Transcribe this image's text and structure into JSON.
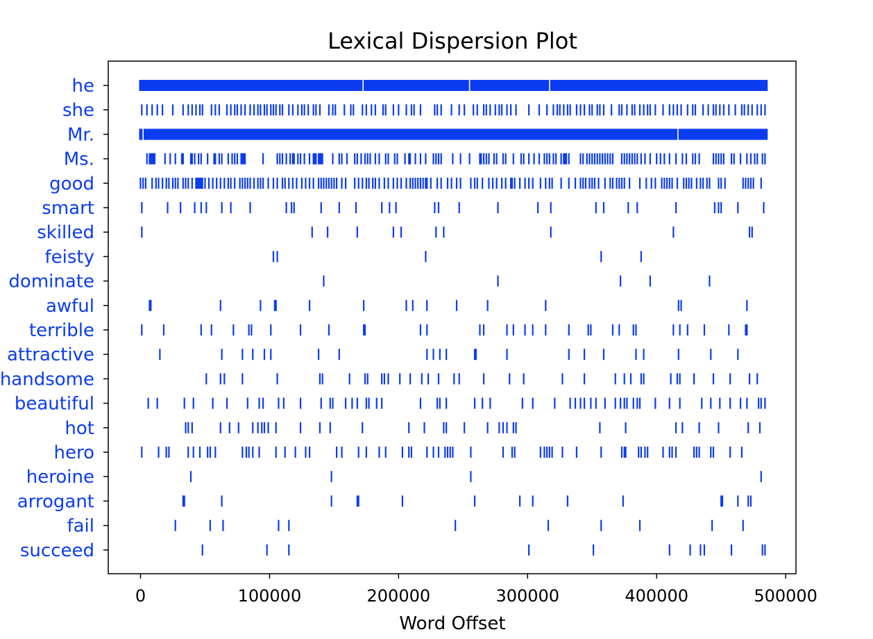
{
  "chart_data": {
    "type": "scatter",
    "title": "Lexical Dispersion Plot",
    "xlabel": "Word Offset",
    "ylabel": "",
    "xlim": [
      -25000,
      508000
    ],
    "xticks": [
      0,
      100000,
      200000,
      300000,
      400000,
      500000
    ],
    "xtick_labels": [
      "0",
      "100000",
      "200000",
      "300000",
      "400000",
      "500000"
    ],
    "grid": false,
    "marker": "|",
    "color": "#0b3cf0",
    "words": [
      "he",
      "she",
      "Mr.",
      "Ms.",
      "good",
      "smart",
      "skilled",
      "feisty",
      "dominate",
      "awful",
      "terrible",
      "attractive",
      "handsome",
      "beautiful",
      "hot",
      "hero",
      "heroine",
      "arrogant",
      "fail",
      "succeed"
    ],
    "series": [
      {
        "word": "he",
        "dense": true,
        "range": [
          0,
          485000
        ],
        "gaps": [
          172500,
          255000,
          317000
        ]
      },
      {
        "word": "she",
        "offsets": [
          1000,
          5000,
          9000,
          13000,
          17000,
          25000,
          33000,
          37000,
          40000,
          43000,
          46000,
          48000,
          55000,
          58000,
          61000,
          67000,
          70000,
          73000,
          75000,
          78000,
          81000,
          85000,
          88000,
          91000,
          93000,
          96000,
          98000,
          101000,
          103000,
          105000,
          108000,
          110000,
          115000,
          118000,
          122000,
          125000,
          127000,
          130000,
          134000,
          136000,
          139000,
          146000,
          149000,
          151000,
          158000,
          163000,
          165000,
          172000,
          175000,
          179000,
          182000,
          188000,
          190000,
          196000,
          200000,
          206000,
          210000,
          212000,
          217000,
          228000,
          230000,
          233000,
          241000,
          247000,
          251000,
          258000,
          261000,
          266000,
          268000,
          271000,
          275000,
          278000,
          280000,
          284000,
          287000,
          291000,
          301000,
          309000,
          315000,
          320000,
          323000,
          325000,
          328000,
          331000,
          333000,
          338000,
          341000,
          344000,
          348000,
          350000,
          354000,
          356000,
          359000,
          365000,
          371000,
          373000,
          377000,
          381000,
          383000,
          387000,
          390000,
          393000,
          395000,
          399000,
          405000,
          410000,
          413000,
          416000,
          419000,
          424000,
          428000,
          430000,
          436000,
          440000,
          444000,
          446000,
          449000,
          452000,
          456000,
          461000,
          466000,
          468000,
          471000,
          474000,
          478000,
          481000,
          484000
        ]
      },
      {
        "word": "Mr.",
        "dense": true,
        "range": [
          0,
          485000
        ],
        "gaps": [
          2000,
          416500
        ]
      },
      {
        "word": "Ms.",
        "offsets": [
          5000,
          7000,
          8000,
          9000,
          10000,
          11000,
          19000,
          23000,
          27000,
          32000,
          33000,
          39000,
          40000,
          42000,
          45000,
          47000,
          52000,
          57000,
          58000,
          61000,
          63000,
          68000,
          71000,
          73000,
          75000,
          78000,
          79000,
          80000,
          81000,
          95000,
          106000,
          108000,
          110000,
          113000,
          116000,
          118000,
          119000,
          122000,
          124000,
          127000,
          131000,
          134000,
          135000,
          136000,
          138000,
          139000,
          140000,
          141000,
          149000,
          154000,
          156000,
          160000,
          166000,
          168000,
          171000,
          174000,
          176000,
          178000,
          182000,
          185000,
          190000,
          192000,
          197000,
          199000,
          205000,
          208000,
          209000,
          213000,
          217000,
          221000,
          227000,
          229000,
          231000,
          233000,
          242000,
          248000,
          255000,
          263000,
          264000,
          266000,
          268000,
          270000,
          274000,
          276000,
          281000,
          283000,
          289000,
          295000,
          297000,
          301000,
          305000,
          309000,
          313000,
          315000,
          317000,
          320000,
          322000,
          326000,
          328000,
          329000,
          330000,
          332000,
          341000,
          343000,
          346000,
          348000,
          350000,
          352000,
          354000,
          356000,
          358000,
          360000,
          362000,
          364000,
          366000,
          373000,
          375000,
          377000,
          379000,
          381000,
          383000,
          385000,
          388000,
          391000,
          395000,
          400000,
          403000,
          406000,
          410000,
          415000,
          420000,
          423000,
          428000,
          430000,
          433000,
          444000,
          446000,
          448000,
          450000,
          452000,
          458000,
          460000,
          465000,
          470000,
          473000,
          476000,
          478000,
          482000,
          484000
        ]
      },
      {
        "word": "good",
        "offsets": [
          0,
          2000,
          4000,
          9000,
          12000,
          14000,
          17000,
          20000,
          22000,
          25000,
          27000,
          29000,
          33000,
          35000,
          37000,
          40000,
          43000,
          44000,
          45000,
          46000,
          47000,
          48000,
          50000,
          53000,
          56000,
          59000,
          62000,
          65000,
          68000,
          70000,
          73000,
          77000,
          79000,
          81000,
          83000,
          85000,
          88000,
          91000,
          93000,
          95000,
          99000,
          103000,
          106000,
          110000,
          112000,
          115000,
          118000,
          121000,
          125000,
          128000,
          131000,
          134000,
          138000,
          140000,
          142000,
          144000,
          146000,
          148000,
          150000,
          152000,
          156000,
          159000,
          166000,
          169000,
          172000,
          175000,
          177000,
          180000,
          182000,
          185000,
          189000,
          192000,
          196000,
          199000,
          202000,
          206000,
          209000,
          211000,
          213000,
          215000,
          217000,
          219000,
          221000,
          222000,
          225000,
          230000,
          233000,
          238000,
          241000,
          245000,
          248000,
          256000,
          259000,
          261000,
          265000,
          270000,
          273000,
          276000,
          280000,
          283000,
          287000,
          288000,
          290000,
          294000,
          298000,
          301000,
          304000,
          310000,
          314000,
          317000,
          319000,
          326000,
          332000,
          337000,
          341000,
          343000,
          345000,
          348000,
          350000,
          352000,
          355000,
          360000,
          364000,
          366000,
          369000,
          371000,
          373000,
          375000,
          379000,
          387000,
          392000,
          396000,
          399000,
          404000,
          406000,
          408000,
          410000,
          412000,
          416000,
          421000,
          423000,
          425000,
          427000,
          431000,
          434000,
          436000,
          439000,
          441000,
          448000,
          450000,
          453000,
          467000,
          469000,
          471000,
          473000,
          475000,
          481000
        ]
      },
      {
        "word": "smart",
        "offsets": [
          1000,
          21000,
          31000,
          42000,
          47000,
          51000,
          63000,
          70000,
          85000,
          113000,
          117000,
          119000,
          140000,
          154000,
          167000,
          187000,
          193000,
          198000,
          228000,
          231000,
          247000,
          277000,
          308000,
          318000,
          353000,
          359000,
          378000,
          385000,
          415000,
          445000,
          448000,
          450000,
          463000,
          483000
        ]
      },
      {
        "word": "skilled",
        "offsets": [
          1000,
          133000,
          145000,
          168000,
          196000,
          202000,
          229000,
          235000,
          318000,
          413000,
          472000,
          474000
        ]
      },
      {
        "word": "feisty",
        "offsets": [
          103000,
          106000,
          221000,
          357000,
          388000
        ]
      },
      {
        "word": "dominate",
        "offsets": [
          142000,
          277000,
          372000,
          395000,
          441000
        ]
      },
      {
        "word": "awful",
        "offsets": [
          7000,
          8000,
          62000,
          93000,
          104000,
          105000,
          131000,
          173000,
          206000,
          211000,
          222000,
          245000,
          269000,
          314000,
          417000,
          419000,
          470000
        ]
      },
      {
        "word": "terrible",
        "offsets": [
          1000,
          18000,
          47000,
          55000,
          72000,
          84000,
          86000,
          101000,
          124000,
          146000,
          173000,
          174000,
          217000,
          222000,
          263000,
          266000,
          284000,
          289000,
          298000,
          304000,
          314000,
          332000,
          347000,
          349000,
          366000,
          371000,
          382000,
          384000,
          413000,
          418000,
          424000,
          437000,
          456000,
          469000,
          470000
        ]
      },
      {
        "word": "attractive",
        "offsets": [
          15000,
          63000,
          79000,
          87000,
          96000,
          101000,
          138000,
          154000,
          222000,
          227000,
          232000,
          237000,
          259000,
          260000,
          284000,
          332000,
          344000,
          359000,
          384000,
          390000,
          417000,
          442000,
          463000
        ]
      },
      {
        "word": "handsome",
        "offsets": [
          51000,
          62000,
          65000,
          79000,
          106000,
          139000,
          141000,
          162000,
          174000,
          176000,
          187000,
          189000,
          192000,
          201000,
          209000,
          218000,
          223000,
          231000,
          243000,
          247000,
          266000,
          286000,
          297000,
          327000,
          344000,
          368000,
          375000,
          380000,
          388000,
          390000,
          411000,
          416000,
          418000,
          429000,
          444000,
          457000,
          472000,
          478000
        ]
      },
      {
        "word": "beautiful",
        "offsets": [
          6000,
          13000,
          34000,
          41000,
          56000,
          67000,
          83000,
          92000,
          95000,
          107000,
          111000,
          124000,
          140000,
          147000,
          149000,
          159000,
          164000,
          168000,
          175000,
          177000,
          183000,
          187000,
          217000,
          230000,
          232000,
          237000,
          259000,
          265000,
          271000,
          296000,
          304000,
          321000,
          333000,
          337000,
          341000,
          344000,
          349000,
          353000,
          360000,
          368000,
          372000,
          375000,
          377000,
          382000,
          385000,
          387000,
          399000,
          410000,
          418000,
          435000,
          442000,
          449000,
          457000,
          465000,
          470000,
          479000,
          481000,
          484000
        ]
      },
      {
        "word": "hot",
        "offsets": [
          35000,
          37000,
          40000,
          62000,
          69000,
          76000,
          87000,
          91000,
          94000,
          96000,
          99000,
          105000,
          124000,
          139000,
          147000,
          172000,
          208000,
          220000,
          235000,
          237000,
          251000,
          269000,
          278000,
          281000,
          284000,
          289000,
          291000,
          356000,
          376000,
          415000,
          420000,
          433000,
          448000,
          471000,
          480000
        ]
      },
      {
        "word": "hero",
        "offsets": [
          1000,
          14000,
          20000,
          22000,
          37000,
          41000,
          46000,
          52000,
          54000,
          58000,
          79000,
          82000,
          84000,
          87000,
          92000,
          105000,
          112000,
          120000,
          128000,
          131000,
          152000,
          156000,
          169000,
          175000,
          185000,
          190000,
          203000,
          208000,
          210000,
          222000,
          227000,
          231000,
          236000,
          238000,
          240000,
          242000,
          256000,
          281000,
          288000,
          290000,
          310000,
          313000,
          315000,
          317000,
          319000,
          327000,
          338000,
          357000,
          373000,
          375000,
          376000,
          386000,
          388000,
          391000,
          393000,
          405000,
          410000,
          412000,
          415000,
          429000,
          431000,
          433000,
          442000,
          444000,
          457000,
          466000
        ]
      },
      {
        "word": "heroine",
        "offsets": [
          39000,
          148000,
          256000,
          481000
        ]
      },
      {
        "word": "arrogant",
        "offsets": [
          33000,
          34000,
          63000,
          148000,
          168000,
          169000,
          203000,
          259000,
          294000,
          304000,
          331000,
          374000,
          450000,
          451000,
          463000,
          471000,
          473000
        ]
      },
      {
        "word": "fail",
        "offsets": [
          27000,
          54000,
          64000,
          107000,
          115000,
          244000,
          316000,
          357000,
          387000,
          443000,
          467000
        ]
      },
      {
        "word": "succeed",
        "offsets": [
          48000,
          98000,
          115000,
          301000,
          351000,
          410000,
          426000,
          434000,
          437000,
          458000,
          482000,
          484000
        ]
      }
    ]
  }
}
